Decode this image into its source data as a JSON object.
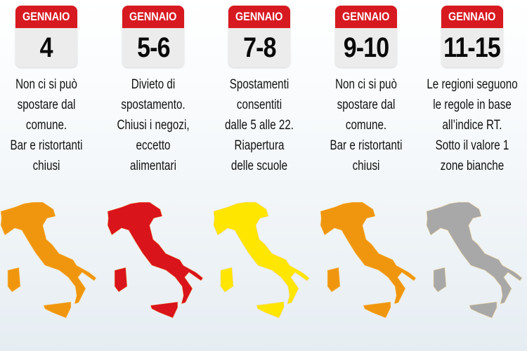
{
  "colors": {
    "header": "#d71920",
    "orange": "#f0960e",
    "red": "#d9141b",
    "yellow": "#ffe600",
    "grey": "#a8a8a8",
    "borders": "#f7d79a"
  },
  "columns": [
    {
      "month": "GENNAIO",
      "day": "4",
      "lines": [
        "Non ci si può",
        "spostare dal",
        "comune.",
        "Bar e ristortanti",
        "chiusi"
      ],
      "map_color": "orange"
    },
    {
      "month": "GENNAIO",
      "day": "5-6",
      "lines": [
        "Divieto di",
        "spostamento.",
        "Chiusi i negozi,",
        "eccetto",
        "alimentari"
      ],
      "map_color": "red"
    },
    {
      "month": "GENNAIO",
      "day": "7-8",
      "lines": [
        "Spostamenti",
        "consentiti",
        "dalle 5 alle 22.",
        "Riapertura",
        "delle scuole"
      ],
      "map_color": "yellow"
    },
    {
      "month": "GENNAIO",
      "day": "9-10",
      "lines": [
        "Non ci si può",
        "spostare dal",
        "comune.",
        "Bar e ristortanti",
        "chiusi"
      ],
      "map_color": "orange"
    },
    {
      "month": "GENNAIO",
      "day": "11-15",
      "lines": [
        "Le regioni seguono",
        "le regole in base",
        "all’indice RT.",
        "Sotto il valore 1",
        "zone bianche"
      ],
      "map_color": "grey"
    }
  ]
}
